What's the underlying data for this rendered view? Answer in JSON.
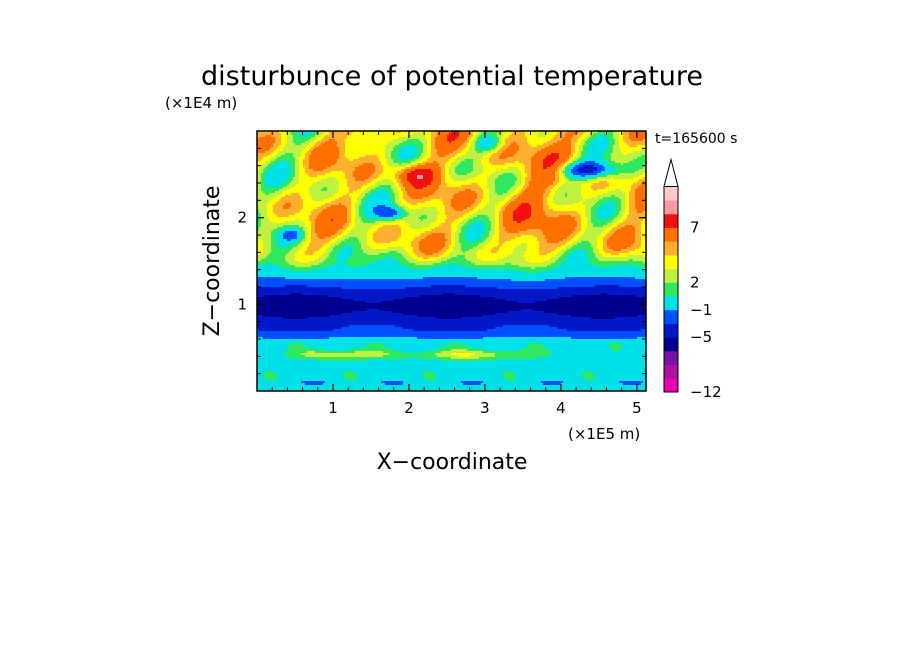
{
  "chart_data": {
    "type": "heatmap",
    "title": "disturbunce of potential temperature",
    "xlabel": "X−coordinate",
    "ylabel": "Z−coordinate",
    "x_unit": "(×1E5 m)",
    "y_unit": "(×1E4 m)",
    "time_label": "t=165600 s",
    "xlim": [
      0,
      5.12
    ],
    "ylim": [
      0,
      3.0
    ],
    "x_ticks": [
      1,
      2,
      3,
      4,
      5
    ],
    "x_tick_labels": [
      "1",
      "2",
      "3",
      "4",
      "5"
    ],
    "y_ticks": [
      1,
      2
    ],
    "y_tick_labels": [
      "1",
      "2"
    ],
    "colorbar": {
      "levels": [
        -12,
        -11,
        -9,
        -7,
        -5,
        -3,
        -1,
        1,
        2,
        3,
        4,
        5,
        7,
        9,
        11
      ],
      "colors": [
        "#e800b8",
        "#b0109c",
        "#7a10a8",
        "#000090",
        "#0018c8",
        "#0050ff",
        "#00e0e8",
        "#30e860",
        "#c0f040",
        "#ffff00",
        "#ffb030",
        "#ff7000",
        "#f01010",
        "#ff9aa0",
        "#ffc8c8"
      ],
      "tick_values": [
        -12,
        -5,
        -1,
        2,
        7
      ],
      "tick_labels": [
        "−12",
        "−5",
        "−1",
        "2",
        "7"
      ],
      "extend_max": true
    },
    "field_note": "estimated approximate field: near-zero/positive surface layer, strong negative band at z≈0.7–1.3 (x1E4 m), warm wave-like anomalies aloft with cold cells"
  },
  "colors": {
    "background": "#ffffff",
    "axes": "#000000"
  }
}
